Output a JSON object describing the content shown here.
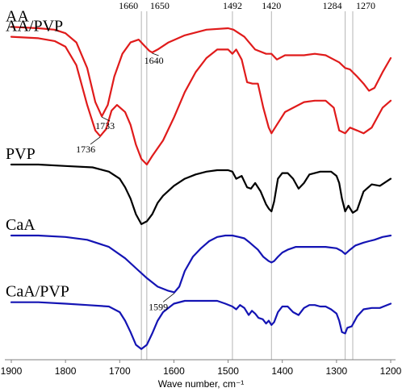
{
  "chart_data": {
    "type": "line",
    "title": "",
    "xlabel": "Wave number, cm⁻¹",
    "ylabel": "",
    "xlim": [
      1900,
      1200
    ],
    "x_reversed": true,
    "x_ticks": [
      "1900",
      "1800",
      "1700",
      "1600",
      "1500",
      "1400",
      "1300",
      "1200"
    ],
    "grid": false,
    "legend": "none",
    "reference_lines": [
      "1660",
      "1650",
      "1492",
      "1420",
      "1284",
      "1270"
    ],
    "annotations": [
      {
        "text": "1733",
        "x": 1733,
        "series": "AA"
      },
      {
        "text": "1640",
        "x": 1640,
        "series": "AA"
      },
      {
        "text": "1736",
        "x": 1736,
        "series": "AA/PVP"
      },
      {
        "text": "1599",
        "x": 1599,
        "series": "CaA"
      }
    ],
    "series": [
      {
        "name": "AA",
        "color": "#e01b1b",
        "x": [
          1900,
          1850,
          1820,
          1800,
          1780,
          1760,
          1745,
          1733,
          1722,
          1710,
          1695,
          1680,
          1665,
          1655,
          1645,
          1640,
          1630,
          1610,
          1580,
          1540,
          1500,
          1490,
          1470,
          1450,
          1430,
          1420,
          1410,
          1395,
          1380,
          1360,
          1340,
          1320,
          1305,
          1295,
          1284,
          1275,
          1262,
          1250,
          1240,
          1230,
          1215,
          1200
        ],
        "y": [
          0.3,
          0.4,
          0.5,
          0.75,
          1.4,
          3.2,
          5.6,
          6.6,
          5.8,
          3.8,
          2.2,
          1.4,
          1.2,
          1.6,
          2.0,
          2.1,
          1.9,
          1.4,
          0.9,
          0.5,
          0.4,
          0.5,
          1.0,
          1.9,
          2.2,
          2.2,
          2.6,
          2.3,
          2.3,
          2.3,
          2.2,
          2.3,
          2.6,
          2.8,
          3.2,
          3.3,
          3.8,
          4.3,
          4.8,
          4.6,
          3.5,
          2.5
        ]
      },
      {
        "name": "AA/PVP",
        "color": "#e01b1b",
        "x": [
          1900,
          1850,
          1820,
          1800,
          1780,
          1760,
          1745,
          1736,
          1725,
          1715,
          1705,
          1690,
          1680,
          1670,
          1660,
          1650,
          1640,
          1620,
          1600,
          1580,
          1560,
          1540,
          1520,
          1500,
          1492,
          1485,
          1475,
          1465,
          1455,
          1445,
          1435,
          1425,
          1420,
          1410,
          1395,
          1380,
          1360,
          1340,
          1320,
          1305,
          1295,
          1284,
          1275,
          1262,
          1250,
          1235,
          1215,
          1200
        ],
        "y": [
          1.0,
          1.1,
          1.3,
          1.7,
          3.0,
          5.8,
          7.6,
          8.0,
          7.5,
          6.2,
          5.8,
          6.3,
          7.2,
          8.6,
          9.6,
          10.0,
          9.4,
          8.3,
          6.7,
          4.9,
          3.5,
          2.5,
          1.9,
          1.9,
          2.2,
          1.9,
          2.6,
          4.2,
          4.3,
          4.3,
          6.0,
          7.4,
          7.8,
          7.2,
          6.3,
          6.0,
          5.6,
          5.5,
          5.5,
          6.0,
          7.6,
          7.8,
          7.4,
          7.6,
          7.8,
          7.4,
          6.0,
          5.5
        ]
      },
      {
        "name": "PVP",
        "color": "#000000",
        "x": [
          1900,
          1850,
          1800,
          1750,
          1720,
          1700,
          1690,
          1680,
          1670,
          1660,
          1650,
          1640,
          1630,
          1620,
          1600,
          1580,
          1560,
          1540,
          1520,
          1500,
          1492,
          1485,
          1475,
          1465,
          1458,
          1450,
          1440,
          1430,
          1425,
          1420,
          1415,
          1408,
          1400,
          1390,
          1380,
          1370,
          1360,
          1350,
          1340,
          1330,
          1320,
          1310,
          1300,
          1295,
          1290,
          1284,
          1278,
          1270,
          1262,
          1250,
          1235,
          1220,
          1200
        ],
        "y": [
          10.0,
          10.0,
          10.1,
          10.2,
          10.5,
          11.0,
          11.6,
          12.4,
          13.5,
          14.2,
          14.0,
          13.5,
          12.7,
          12.2,
          11.5,
          11.0,
          10.7,
          10.5,
          10.4,
          10.4,
          10.5,
          11.0,
          10.8,
          11.6,
          11.7,
          11.3,
          11.9,
          12.8,
          13.1,
          13.3,
          12.6,
          11.0,
          10.6,
          10.6,
          11.0,
          11.7,
          11.3,
          10.7,
          10.6,
          10.5,
          10.5,
          10.5,
          10.8,
          11.3,
          12.4,
          13.3,
          12.9,
          13.4,
          13.2,
          11.9,
          11.4,
          11.5,
          11.0
        ]
      },
      {
        "name": "CaA",
        "color": "#1414b4",
        "x": [
          1900,
          1850,
          1800,
          1760,
          1720,
          1690,
          1670,
          1650,
          1630,
          1610,
          1599,
          1590,
          1580,
          1565,
          1550,
          1535,
          1520,
          1505,
          1492,
          1480,
          1470,
          1460,
          1445,
          1435,
          1425,
          1420,
          1415,
          1408,
          1400,
          1390,
          1375,
          1360,
          1340,
          1320,
          1300,
          1290,
          1284,
          1275,
          1265,
          1250,
          1240,
          1230,
          1215,
          1200
        ],
        "y": [
          15.0,
          15.0,
          15.1,
          15.3,
          15.8,
          16.6,
          17.3,
          18.0,
          18.6,
          18.9,
          19.0,
          18.6,
          17.5,
          16.5,
          15.9,
          15.4,
          15.1,
          15.0,
          15.0,
          15.1,
          15.2,
          15.5,
          16.0,
          16.5,
          16.8,
          16.9,
          16.8,
          16.5,
          16.2,
          16.0,
          15.8,
          15.8,
          15.8,
          15.8,
          15.9,
          16.1,
          16.3,
          16.0,
          15.7,
          15.5,
          15.4,
          15.3,
          15.1,
          15.0
        ]
      },
      {
        "name": "CaA/PVP",
        "color": "#1414b4",
        "x": [
          1900,
          1850,
          1800,
          1760,
          1720,
          1700,
          1690,
          1680,
          1670,
          1660,
          1650,
          1640,
          1630,
          1620,
          1600,
          1580,
          1560,
          1540,
          1520,
          1505,
          1492,
          1485,
          1478,
          1470,
          1462,
          1456,
          1450,
          1444,
          1436,
          1430,
          1425,
          1420,
          1415,
          1408,
          1400,
          1390,
          1380,
          1370,
          1360,
          1350,
          1340,
          1330,
          1320,
          1310,
          1300,
          1295,
          1290,
          1284,
          1280,
          1272,
          1262,
          1250,
          1235,
          1220,
          1200
        ],
        "y": [
          19.7,
          19.7,
          19.8,
          19.9,
          20.0,
          20.4,
          21.0,
          21.8,
          22.7,
          23.0,
          22.7,
          21.9,
          21.0,
          20.4,
          19.8,
          19.6,
          19.6,
          19.6,
          19.6,
          19.8,
          20.0,
          20.2,
          19.9,
          20.1,
          20.6,
          20.3,
          20.5,
          20.8,
          20.9,
          21.2,
          21.0,
          21.3,
          21.1,
          20.4,
          20.0,
          20.0,
          20.4,
          20.6,
          20.1,
          19.9,
          19.9,
          20.0,
          20.0,
          20.2,
          20.5,
          21.0,
          21.8,
          21.9,
          21.5,
          21.4,
          20.7,
          20.2,
          20.1,
          20.1,
          19.8
        ]
      }
    ]
  }
}
